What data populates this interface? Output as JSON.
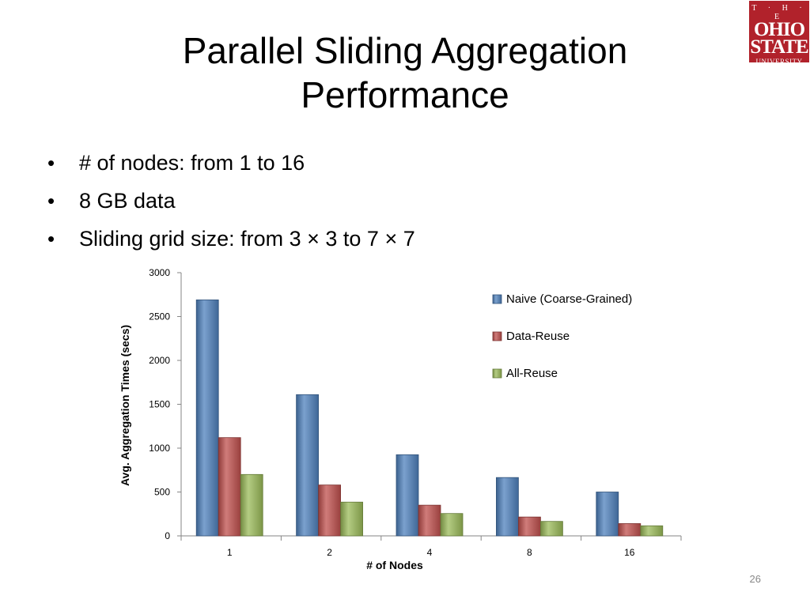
{
  "slide": {
    "title_line1": "Parallel Sliding Aggregation",
    "title_line2": "Performance",
    "bullets": [
      "# of nodes: from 1 to 16",
      "8 GB data",
      "Sliding grid size: from 3 × 3 to 7 × 7"
    ],
    "page_number": "26",
    "logo": {
      "line1": "T · H · E",
      "line2": "OHIO",
      "line3": "STATE",
      "line4": "UNIVERSITY"
    }
  },
  "chart_data": {
    "type": "bar",
    "categories": [
      "1",
      "2",
      "4",
      "8",
      "16"
    ],
    "series": [
      {
        "name": "Naive (Coarse-Grained)",
        "values": [
          2690,
          1610,
          925,
          665,
          500
        ],
        "color": "#4f81bd"
      },
      {
        "name": "Data-Reuse",
        "values": [
          1120,
          580,
          350,
          215,
          140
        ],
        "color": "#c0504d"
      },
      {
        "name": "All-Reuse",
        "values": [
          700,
          385,
          255,
          165,
          115
        ],
        "color": "#9bbb59"
      }
    ],
    "xlabel": "# of Nodes",
    "ylabel": "Avg. Aggregation Times (secs)",
    "ylim": [
      0,
      3000
    ],
    "yticks": [
      0,
      500,
      1000,
      1500,
      2000,
      2500,
      3000
    ],
    "grid": false,
    "legend": "top-right"
  }
}
